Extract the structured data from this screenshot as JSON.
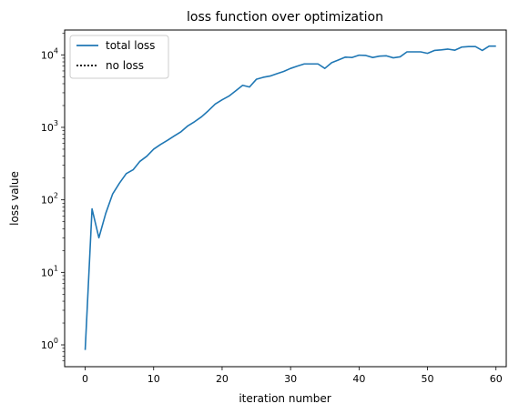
{
  "chart_data": {
    "type": "line",
    "title": "loss function over optimization",
    "xlabel": "iteration number",
    "ylabel": "loss value",
    "xlim": [
      -3,
      61.5
    ],
    "ylim": [
      0.5,
      22000
    ],
    "yscale": "log",
    "grid": false,
    "legend_position": "upper-left",
    "x_ticks": [
      {
        "value": 0,
        "label": "0"
      },
      {
        "value": 10,
        "label": "10"
      },
      {
        "value": 20,
        "label": "20"
      },
      {
        "value": 30,
        "label": "30"
      },
      {
        "value": 40,
        "label": "40"
      },
      {
        "value": 50,
        "label": "50"
      },
      {
        "value": 60,
        "label": "60"
      }
    ],
    "y_ticks": [
      {
        "value": 1,
        "base": "10",
        "exp": "0"
      },
      {
        "value": 10,
        "base": "10",
        "exp": "1"
      },
      {
        "value": 100,
        "base": "10",
        "exp": "2"
      },
      {
        "value": 1000,
        "base": "10",
        "exp": "3"
      },
      {
        "value": 10000,
        "base": "10",
        "exp": "4"
      }
    ],
    "series": [
      {
        "name": "total loss",
        "color": "#1f77b4",
        "style": "solid",
        "x": [
          0,
          1,
          2,
          3,
          4,
          5,
          6,
          7,
          8,
          9,
          10,
          11,
          12,
          13,
          14,
          15,
          16,
          17,
          18,
          19,
          20,
          21,
          22,
          23,
          24,
          25,
          26,
          27,
          28,
          29,
          30,
          31,
          32,
          33,
          34,
          35,
          36,
          37,
          38,
          39,
          40,
          41,
          42,
          43,
          44,
          45,
          46,
          47,
          48,
          49,
          50,
          51,
          52,
          53,
          54,
          55,
          56,
          57,
          58,
          59,
          60
        ],
        "y": [
          0.85,
          75,
          30,
          65,
          120,
          170,
          230,
          260,
          340,
          400,
          500,
          580,
          660,
          760,
          870,
          1050,
          1200,
          1400,
          1700,
          2100,
          2400,
          2700,
          3200,
          3800,
          3600,
          4600,
          4900,
          5100,
          5500,
          5900,
          6500,
          7000,
          7500,
          7500,
          7500,
          6500,
          7800,
          8500,
          9300,
          9200,
          9900,
          9800,
          9200,
          9600,
          9700,
          9100,
          9400,
          11000,
          11000,
          11000,
          10500,
          11500,
          11700,
          12000,
          11600,
          12800,
          13000,
          13000,
          11500,
          13200,
          13200
        ]
      },
      {
        "name": "no loss",
        "color": "#000000",
        "style": "dotted",
        "x": [],
        "y": []
      }
    ]
  }
}
